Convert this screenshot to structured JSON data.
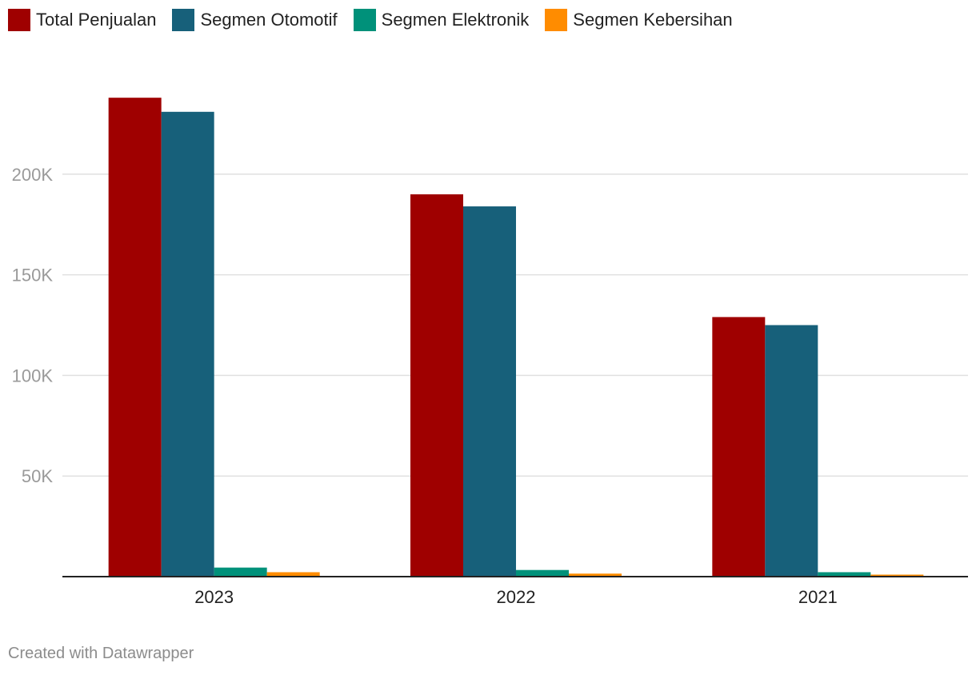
{
  "chart_data": {
    "type": "bar",
    "categories": [
      "2023",
      "2022",
      "2021"
    ],
    "series": [
      {
        "name": "Total Penjualan",
        "color": "#9f0000",
        "values": [
          238000,
          190000,
          129000
        ]
      },
      {
        "name": "Segmen Otomotif",
        "color": "#17607a",
        "values": [
          231000,
          184000,
          125000
        ]
      },
      {
        "name": "Segmen Elektronik",
        "color": "#00917a",
        "values": [
          4500,
          3300,
          2200
        ]
      },
      {
        "name": "Segmen Kebersihan",
        "color": "#ff8c00",
        "values": [
          2200,
          1500,
          1000
        ]
      }
    ],
    "ylim": [
      0,
      250000
    ],
    "yticks": [
      {
        "value": 50000,
        "label": "50K"
      },
      {
        "value": 100000,
        "label": "100K"
      },
      {
        "value": 150000,
        "label": "150K"
      },
      {
        "value": 200000,
        "label": "200K"
      }
    ],
    "grid": true,
    "legend": "top-left"
  },
  "footer": {
    "credit": "Created with Datawrapper"
  }
}
